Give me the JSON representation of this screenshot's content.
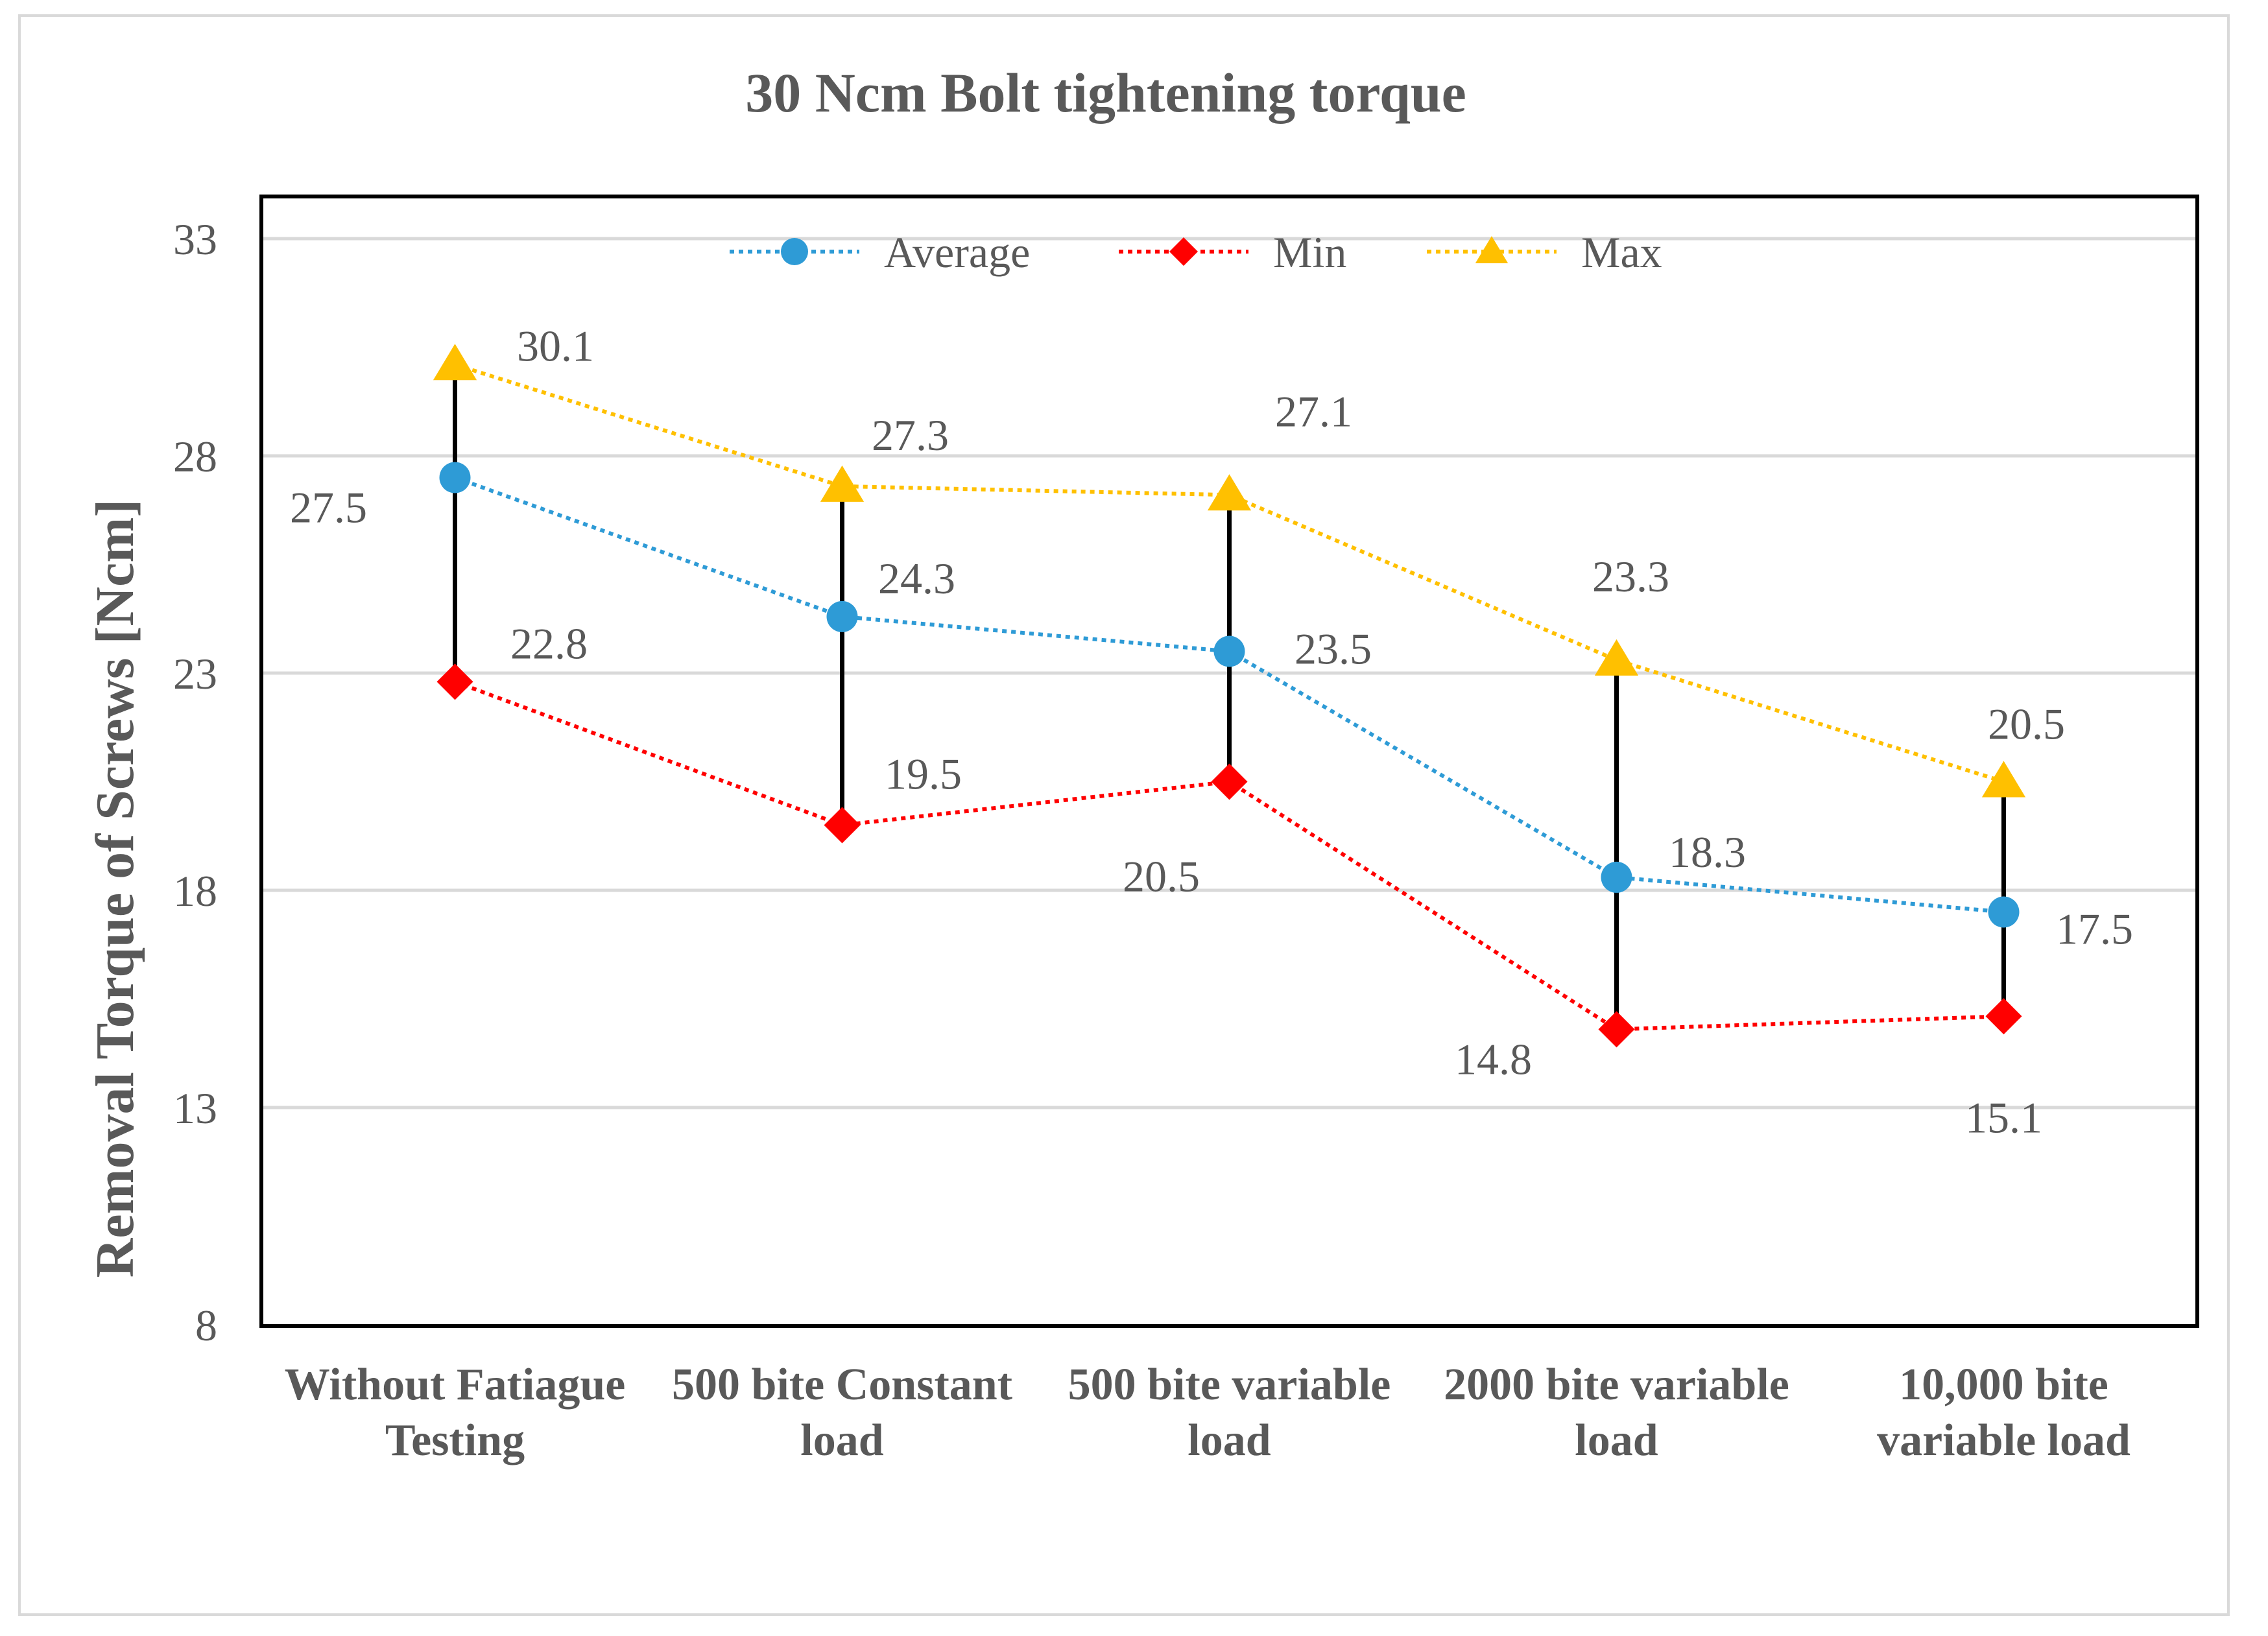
{
  "chart_data": {
    "type": "line",
    "title": "30 Ncm Bolt tightening torque",
    "xlabel": "",
    "ylabel": "Removal Torque of  Screws [Ncm]",
    "ylim": [
      8,
      34
    ],
    "yticks": [
      8,
      13,
      18,
      23,
      28,
      33
    ],
    "grid": true,
    "legend_position": "top-center",
    "categories": [
      [
        "Without Fatiague",
        "Testing"
      ],
      [
        "500 bite Constant",
        "load"
      ],
      [
        "500 bite variable",
        "load"
      ],
      [
        "2000 bite variable",
        "load"
      ],
      [
        "10,000 bite",
        "variable load"
      ]
    ],
    "series": [
      {
        "name": "Average",
        "marker": "circle",
        "color": "#2E9BD6",
        "values": [
          27.5,
          24.3,
          23.5,
          18.3,
          17.5
        ],
        "labels": [
          "27.5",
          "24.3",
          "23.5",
          "18.3",
          "17.5"
        ]
      },
      {
        "name": "Min",
        "marker": "diamond",
        "color": "#FF0000",
        "values": [
          22.8,
          19.5,
          20.5,
          14.8,
          15.1
        ],
        "labels": [
          "22.8",
          "19.5",
          "20.5",
          "14.8",
          "15.1"
        ]
      },
      {
        "name": "Max",
        "marker": "triangle",
        "color": "#FFC000",
        "values": [
          30.1,
          27.3,
          27.1,
          23.3,
          20.5
        ],
        "labels": [
          "30.1",
          "27.3",
          "27.1",
          "23.3",
          "20.5"
        ]
      }
    ],
    "range_bars": {
      "color": "#000000",
      "from_series": "Min",
      "to_series": "Max"
    }
  },
  "colors": {
    "axis": "#000000",
    "grid": "#d9d9d9",
    "text": "#595959",
    "title": "#595959"
  }
}
